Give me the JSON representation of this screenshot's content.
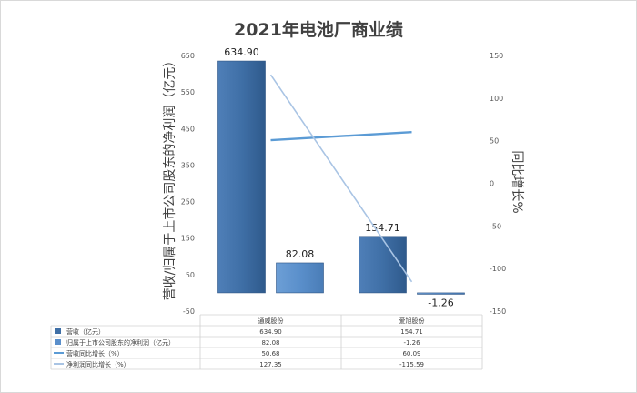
{
  "chart_data": {
    "type": "bar",
    "title": "2021年电池厂商业绩",
    "ylabel": "营收/归属于上市公司股东的净利润（亿元）",
    "y2label": "同比增长%",
    "categories": [
      "通威股份",
      "爱旭股份"
    ],
    "ylim": [
      -50,
      650
    ],
    "yticks": [
      -50,
      50,
      150,
      250,
      350,
      450,
      550,
      650
    ],
    "y2lim": [
      -150,
      150
    ],
    "y2ticks": [
      -150,
      -100,
      -50,
      0,
      50,
      100,
      150
    ],
    "grid": false,
    "legend": "table-bottom",
    "series": [
      {
        "name": "营收（亿元）",
        "kind": "bar",
        "axis": "left",
        "values": [
          634.9,
          154.71
        ],
        "labels": [
          "634.90",
          "154.71"
        ],
        "table": [
          "634.90",
          "154.71"
        ],
        "color": "#3f6fa6"
      },
      {
        "name": "归属于上市公司股东的净利润（亿元）",
        "kind": "bar",
        "axis": "left",
        "values": [
          82.08,
          -1.26
        ],
        "labels": [
          "82.08",
          "-1.26"
        ],
        "table": [
          "82.08",
          "-1.26"
        ],
        "color": "#5a8fcb"
      },
      {
        "name": "营收同比增长（%）",
        "kind": "line",
        "axis": "right",
        "values": [
          50.68,
          60.09
        ],
        "table": [
          "50.68",
          "60.09"
        ],
        "color": "#5b9bd5"
      },
      {
        "name": "净利润同比增长（%）",
        "kind": "line",
        "axis": "right",
        "values": [
          127.35,
          -115.59
        ],
        "table": [
          "127.35",
          "-115.59"
        ],
        "color": "#a9c4e4"
      }
    ]
  }
}
